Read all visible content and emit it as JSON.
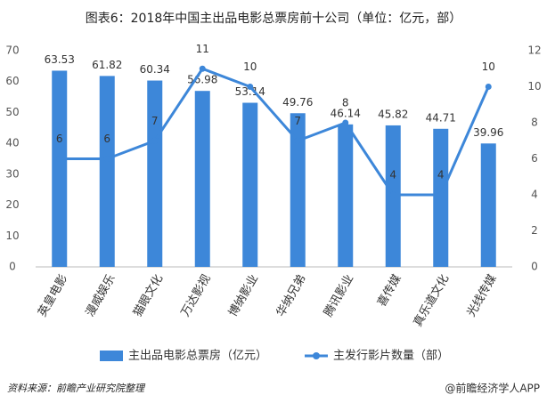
{
  "chart_data": {
    "type": "bar",
    "title": "图表6：2018年中国主出品电影总票房前十公司（单位：亿元，部）",
    "categories": [
      "英皇电影",
      "漫威娱乐",
      "猫眼文化",
      "万达影视",
      "博纳影业",
      "华纳兄弟",
      "腾讯影业",
      "喜传媒",
      "真乐道文化",
      "光线传媒"
    ],
    "series": [
      {
        "name": "主出品电影总票房（亿元）",
        "type": "bar",
        "color": "#3d87d9",
        "values": [
          63.53,
          61.82,
          60.34,
          56.98,
          53.14,
          49.76,
          46.14,
          45.82,
          44.71,
          39.96
        ]
      },
      {
        "name": "主发行影片数量（部）",
        "type": "line",
        "axis": "y2",
        "color": "#3d87d9",
        "values": [
          6,
          6,
          7,
          11,
          10,
          7,
          8,
          4,
          4,
          10
        ]
      }
    ],
    "ylim": [
      0,
      70
    ],
    "yticks": [
      0,
      10,
      20,
      30,
      40,
      50,
      60,
      70
    ],
    "y2lim": [
      0,
      12
    ],
    "y2ticks": [
      0,
      2,
      4,
      6,
      8,
      10,
      12
    ],
    "grid": false,
    "legend": "bottom",
    "source": "资料来源：前瞻产业研究院整理",
    "brand": "@前瞻经济学人APP"
  }
}
